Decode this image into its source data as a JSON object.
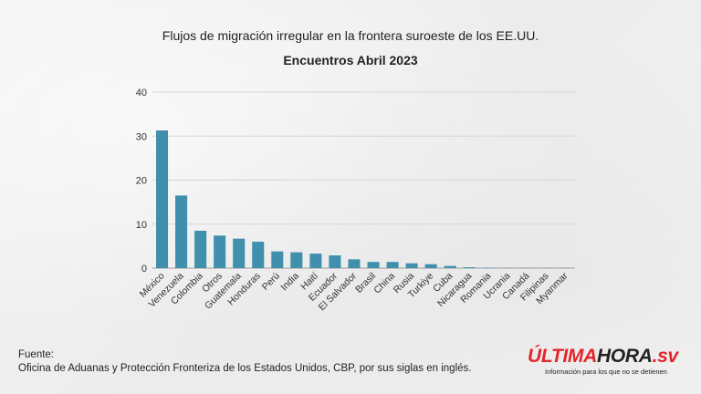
{
  "header": {
    "title": "Flujos de migración irregular en la frontera suroeste de los EE.UU.",
    "subtitle": "Encuentros Abril 2023"
  },
  "footer": {
    "source_label": "Fuente:",
    "source_text": "Oficina de Aduanas y Protección Fronteriza de los Estados Unidos, CBP, por sus siglas en inglés."
  },
  "brand": {
    "name_part1": "ÚLTIMA",
    "name_part2": "HORA",
    "name_part3": ".sv",
    "tagline": "Información para los que no se detienen",
    "accent": "#e3262b"
  },
  "chart_data": {
    "type": "bar",
    "title": "Encuentros Abril 2023",
    "xlabel": "",
    "ylabel": "",
    "ylim": [
      0,
      40
    ],
    "yticks": [
      0,
      10,
      20,
      30,
      40
    ],
    "grid": true,
    "bar_color": "#3f8fad",
    "categories": [
      "México",
      "Venezuela",
      "Colombia",
      "Otros",
      "Guatemala",
      "Honduras",
      "Perú",
      "India",
      "Haití",
      "Ecuador",
      "El Salvador",
      "Brasil",
      "China",
      "Rusia",
      "Turkiye",
      "Cuba",
      "Nicaragua",
      "Romania",
      "Ucrania",
      "Canadá",
      "Filipinas",
      "Myanmar"
    ],
    "values": [
      31.3,
      16.5,
      8.5,
      7.4,
      6.7,
      6.0,
      3.8,
      3.6,
      3.3,
      2.9,
      2.0,
      1.4,
      1.4,
      1.1,
      0.9,
      0.5,
      0.2,
      0.1,
      0.05,
      0.05,
      0.05,
      0.05
    ]
  }
}
